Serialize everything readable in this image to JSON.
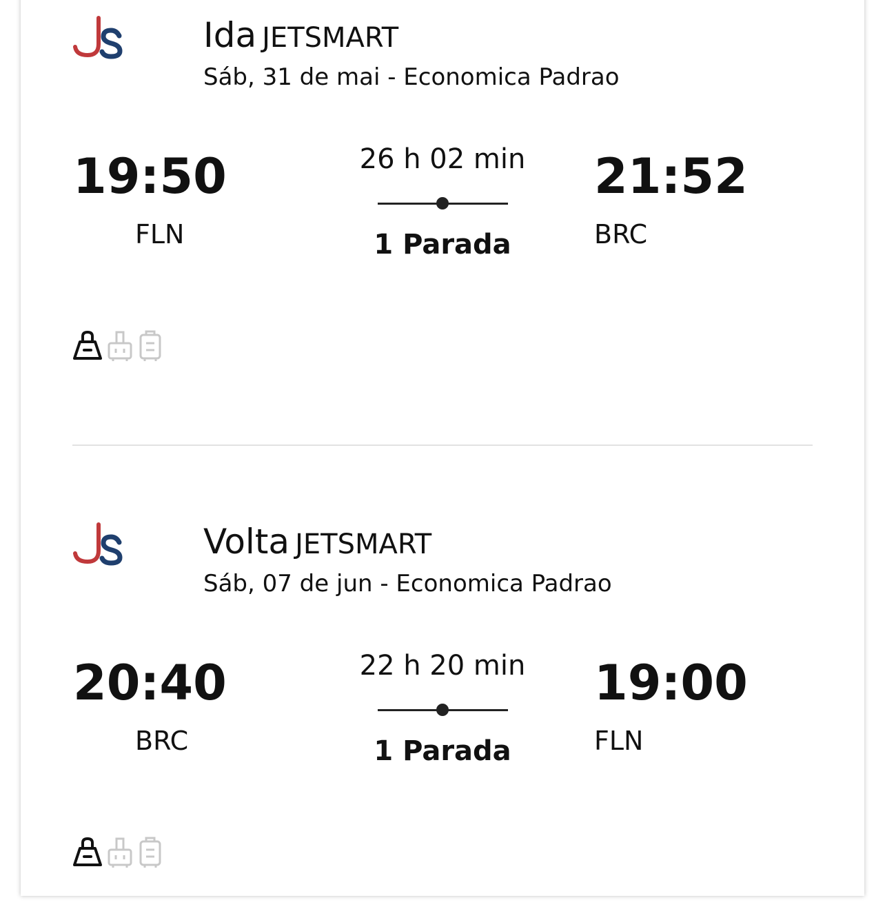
{
  "colors": {
    "logo_red": "#c0393b",
    "logo_blue": "#1f3f6e",
    "bag_included": "#111111",
    "bag_excluded": "#c8c8c8"
  },
  "segments": [
    {
      "direction": "Ida",
      "airline": "JETSMART",
      "date_class": "Sáb, 31 de mai - Economica Padrao",
      "departure_time": "19:50",
      "departure_code": "FLN",
      "duration": "26 h 02 min",
      "stops": "1 Parada",
      "arrival_time": "21:52",
      "arrival_code": "BRC",
      "baggage": [
        {
          "icon": "personal-bag-icon",
          "included": true
        },
        {
          "icon": "carry-on-icon",
          "included": false
        },
        {
          "icon": "checked-bag-icon",
          "included": false
        }
      ]
    },
    {
      "direction": "Volta",
      "airline": "JETSMART",
      "date_class": "Sáb, 07 de jun - Economica Padrao",
      "departure_time": "20:40",
      "departure_code": "BRC",
      "duration": "22 h 20 min",
      "stops": "1 Parada",
      "arrival_time": "19:00",
      "arrival_code": "FLN",
      "baggage": [
        {
          "icon": "personal-bag-icon",
          "included": true
        },
        {
          "icon": "carry-on-icon",
          "included": false
        },
        {
          "icon": "checked-bag-icon",
          "included": false
        }
      ]
    }
  ]
}
